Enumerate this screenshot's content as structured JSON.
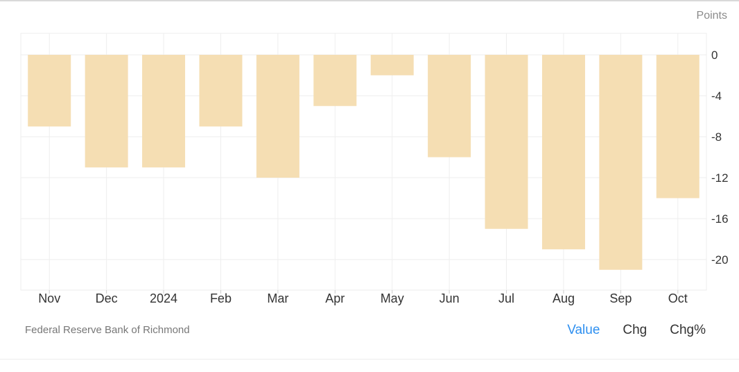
{
  "header": {
    "units": "Points"
  },
  "footer": {
    "source": "Federal Reserve Bank of Richmond",
    "modes": [
      {
        "label": "Value",
        "active": true
      },
      {
        "label": "Chg",
        "active": false
      },
      {
        "label": "Chg%",
        "active": false
      }
    ]
  },
  "colors": {
    "bar": "#f5deb3",
    "active_mode": "#2d8ff0",
    "grid": "#eeeeee"
  },
  "chart_data": {
    "type": "bar",
    "categories": [
      "Nov",
      "Dec",
      "2024",
      "Feb",
      "Mar",
      "Apr",
      "May",
      "Jun",
      "Jul",
      "Aug",
      "Sep",
      "Oct"
    ],
    "values": [
      -7,
      -11,
      -11,
      -7,
      -12,
      -5,
      -2,
      -10,
      -17,
      -19,
      -21,
      -14
    ],
    "ylabel": "Points",
    "yticks": [
      0,
      -4,
      -8,
      -12,
      -16,
      -20
    ],
    "ylim": [
      -23,
      2
    ],
    "grid": true,
    "y_axis_side": "right"
  }
}
